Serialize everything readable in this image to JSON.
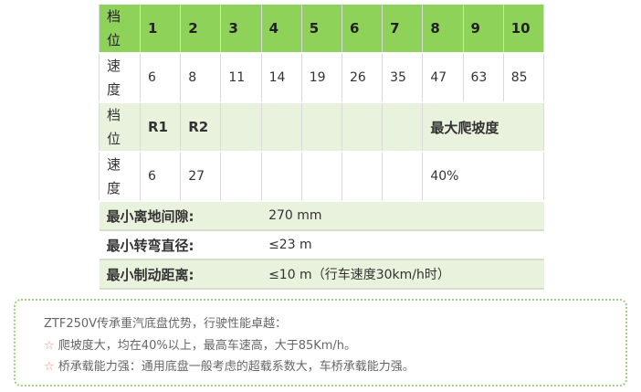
{
  "table": {
    "gear_label": "档位",
    "speed_label": "速度",
    "forward_gears": [
      "1",
      "2",
      "3",
      "4",
      "5",
      "6",
      "7",
      "8",
      "9",
      "10"
    ],
    "forward_speeds": [
      "6",
      "8",
      "11",
      "14",
      "19",
      "26",
      "35",
      "47",
      "63",
      "85"
    ],
    "reverse_gears": [
      "R1",
      "R2"
    ],
    "reverse_speeds": [
      "6",
      "27"
    ],
    "max_grade_label": "最大爬坡度",
    "max_grade_value": "40%",
    "specs": [
      {
        "label": "最小离地间隙:",
        "value": "270 mm"
      },
      {
        "label": "最小转弯直径:",
        "value": "≤23 m"
      },
      {
        "label": "最小制动距离:",
        "value": "≤10 m（行车速度30km/h时）"
      }
    ]
  },
  "notes": {
    "title": "ZTF250V传承重汽底盘优势，行驶性能卓越：",
    "star": "☆",
    "items": [
      "爬坡度大，均在40%以上，最高车速高，大于85Km/h。",
      "桥承载能力强：通用底盘一般考虑的超载系数大，车桥承载能力强。"
    ]
  },
  "colors": {
    "header_green": "#8fd25a",
    "light_green": "#e8f2dc",
    "border_green": "#9fcf7f"
  }
}
